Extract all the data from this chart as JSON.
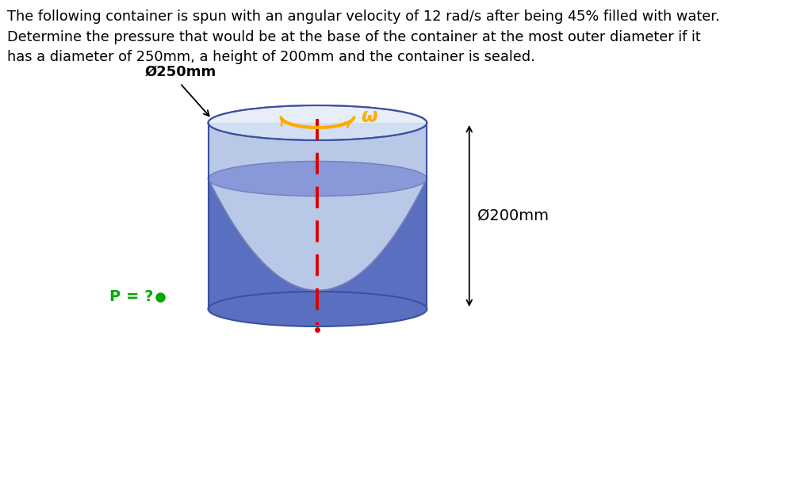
{
  "title_text": "The following container is spun with an angular velocity of 12 rad/s after being 45% filled with water.\nDetermine the pressure that would be at the base of the container at the most outer diameter if it\nhas a diameter of 250mm, a height of 200mm and the container is sealed.",
  "label_d250": "Ø250mm",
  "label_d200": "Ø200mm",
  "label_p": "P = ?",
  "label_omega": "ω",
  "background_color": "#ffffff",
  "cylinder_body_color": "#5b6fc0",
  "cylinder_top_gap_color": "#ccd8f0",
  "water_surface_color": "#8898d8",
  "cylinder_edge_color": "#3a50a0",
  "parab_curve_color": "#7080bb",
  "arrow_color": "#ffaa00",
  "dashed_line_color": "#dd0000",
  "p_color": "#00aa00",
  "text_color": "#000000",
  "dim_color": "#000000"
}
